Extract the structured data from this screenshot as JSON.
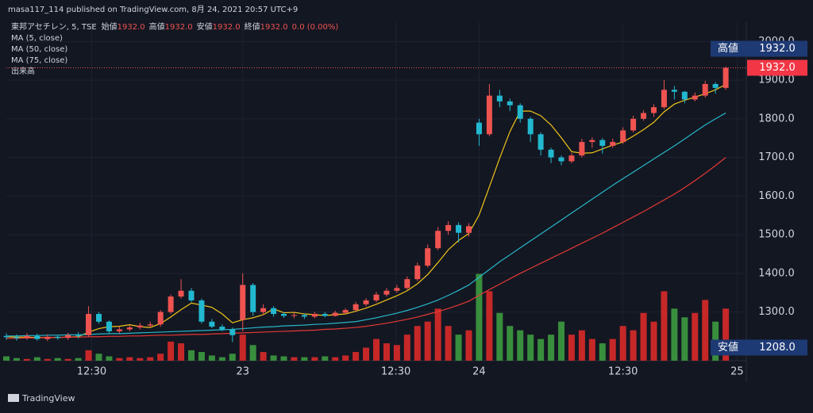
{
  "header": {
    "publisher": "masa117_114 published on TradingView.com, 8月 24, 2021 20:57 UTC+9",
    "brand": "TradingView"
  },
  "chart_data": {
    "type": "candlestick",
    "symbol": "東邦アセチレン, 5, TSE",
    "ohlc": [
      {
        "name": "始値",
        "value": 1932,
        "label": "1932.0"
      },
      {
        "name": "高値",
        "value": 1932,
        "label": "1932.0"
      },
      {
        "name": "安値",
        "value": 1932,
        "label": "1932.0"
      },
      {
        "name": "終値",
        "value": 1932,
        "label": "1932.0"
      }
    ],
    "change": "0.0 (0.00%)",
    "volume_name": "出来高",
    "up_color": "#ef5350",
    "down_color": "#22b8cf",
    "volume_up_color": "#c62828",
    "volume_down_color": "#388e3c",
    "ylim": [
      1174,
      2050
    ],
    "yticks": [
      {
        "value": 1300,
        "label": "1300.0"
      },
      {
        "value": 1400,
        "label": "1400.0"
      },
      {
        "value": 1500,
        "label": "1500.0"
      },
      {
        "value": 1600,
        "label": "1600.0"
      },
      {
        "value": 1700,
        "label": "1700.0"
      },
      {
        "value": 1800,
        "label": "1800.0"
      },
      {
        "value": 1900,
        "label": "1900.0"
      },
      {
        "value": 2000,
        "label": "2000.0"
      }
    ],
    "xlim": [
      0,
      72
    ],
    "xticks": [
      {
        "value": 8.3,
        "label": "12:30"
      },
      {
        "value": 23,
        "label": "23"
      },
      {
        "value": 37.9,
        "label": "12:30"
      },
      {
        "value": 46,
        "label": "24"
      },
      {
        "value": 60,
        "label": "12:30"
      },
      {
        "value": 71.1,
        "label": "25"
      }
    ],
    "grid": true,
    "volume_lim": [
      0,
      390
    ],
    "open": [
      1238,
      1235,
      1232,
      1238,
      1230,
      1236,
      1233,
      1240,
      1240,
      1295,
      1275,
      1250,
      1255,
      1260,
      1265,
      1268,
      1300,
      1340,
      1355,
      1330,
      1275,
      1262,
      1255,
      1280,
      1370,
      1300,
      1310,
      1295,
      1290,
      1292,
      1288,
      1295,
      1290,
      1298,
      1305,
      1320,
      1330,
      1345,
      1355,
      1362,
      1385,
      1420,
      1465,
      1510,
      1525,
      1505,
      1790,
      1760,
      1860,
      1845,
      1835,
      1800,
      1760,
      1720,
      1700,
      1690,
      1705,
      1740,
      1745,
      1730,
      1740,
      1770,
      1800,
      1815,
      1830,
      1875,
      1870,
      1850,
      1860,
      1890,
      1880
    ],
    "high": [
      1245,
      1242,
      1245,
      1244,
      1242,
      1240,
      1246,
      1248,
      1315,
      1300,
      1278,
      1262,
      1266,
      1272,
      1275,
      1305,
      1345,
      1385,
      1362,
      1335,
      1282,
      1268,
      1260,
      1400,
      1375,
      1320,
      1315,
      1300,
      1298,
      1296,
      1300,
      1300,
      1303,
      1310,
      1326,
      1336,
      1352,
      1362,
      1370,
      1392,
      1428,
      1475,
      1520,
      1535,
      1532,
      1530,
      1800,
      1890,
      1875,
      1852,
      1840,
      1805,
      1765,
      1725,
      1705,
      1712,
      1748,
      1752,
      1750,
      1748,
      1778,
      1808,
      1822,
      1838,
      1900,
      1885,
      1872,
      1868,
      1898,
      1895,
      1935
    ],
    "low": [
      1228,
      1226,
      1228,
      1226,
      1225,
      1228,
      1228,
      1232,
      1235,
      1270,
      1245,
      1245,
      1250,
      1255,
      1260,
      1262,
      1295,
      1335,
      1325,
      1270,
      1258,
      1250,
      1222,
      1250,
      1290,
      1292,
      1288,
      1285,
      1284,
      1282,
      1284,
      1286,
      1288,
      1295,
      1302,
      1315,
      1325,
      1340,
      1350,
      1358,
      1380,
      1415,
      1460,
      1500,
      1480,
      1495,
      1730,
      1755,
      1830,
      1820,
      1790,
      1740,
      1705,
      1685,
      1680,
      1685,
      1700,
      1725,
      1710,
      1725,
      1735,
      1765,
      1795,
      1805,
      1825,
      1850,
      1840,
      1845,
      1855,
      1865,
      1875
    ],
    "close": [
      1235,
      1232,
      1238,
      1230,
      1236,
      1233,
      1240,
      1238,
      1295,
      1275,
      1250,
      1255,
      1260,
      1265,
      1268,
      1300,
      1340,
      1355,
      1330,
      1275,
      1262,
      1255,
      1240,
      1370,
      1300,
      1310,
      1295,
      1290,
      1292,
      1288,
      1295,
      1290,
      1298,
      1305,
      1320,
      1330,
      1345,
      1355,
      1362,
      1385,
      1420,
      1465,
      1510,
      1525,
      1505,
      1522,
      1760,
      1860,
      1845,
      1835,
      1800,
      1760,
      1720,
      1700,
      1690,
      1705,
      1740,
      1745,
      1730,
      1740,
      1770,
      1800,
      1815,
      1830,
      1875,
      1870,
      1850,
      1860,
      1890,
      1880,
      1932
    ],
    "volume": [
      5,
      3,
      2,
      4,
      2,
      3,
      2,
      3,
      12,
      8,
      5,
      3,
      4,
      3,
      4,
      8,
      22,
      20,
      12,
      10,
      6,
      4,
      8,
      30,
      18,
      10,
      6,
      5,
      4,
      4,
      4,
      5,
      4,
      6,
      10,
      15,
      25,
      20,
      18,
      30,
      40,
      45,
      60,
      40,
      30,
      35,
      100,
      80,
      55,
      40,
      35,
      30,
      25,
      30,
      45,
      30,
      35,
      25,
      20,
      25,
      40,
      35,
      55,
      45,
      80,
      60,
      50,
      55,
      70,
      45,
      60
    ],
    "series": [
      {
        "name": "MA (5, close)",
        "color": "#f0c419",
        "values": [
          1236,
          1235,
          1235,
          1234,
          1234,
          1234,
          1235,
          1236,
          1248,
          1257,
          1262,
          1263,
          1267,
          1262,
          1260,
          1270,
          1287,
          1306,
          1323,
          1318,
          1312,
          1295,
          1272,
          1280,
          1285,
          1293,
          1308,
          1298,
          1299,
          1295,
          1293,
          1291,
          1293,
          1295,
          1302,
          1310,
          1320,
          1331,
          1342,
          1355,
          1373,
          1397,
          1428,
          1461,
          1485,
          1503,
          1551,
          1624,
          1698,
          1767,
          1820,
          1820,
          1808,
          1784,
          1751,
          1715,
          1711,
          1712,
          1722,
          1732,
          1740,
          1755,
          1772,
          1791,
          1818,
          1838,
          1848,
          1856,
          1865,
          1875,
          1889
        ]
      },
      {
        "name": "MA (50, close)",
        "color": "#26b7c9",
        "values": [
          1238,
          1238,
          1239,
          1239,
          1240,
          1240,
          1241,
          1241,
          1242,
          1243,
          1244,
          1244,
          1245,
          1246,
          1247,
          1248,
          1249,
          1250,
          1251,
          1252,
          1253,
          1254,
          1255,
          1257,
          1259,
          1261,
          1262,
          1264,
          1265,
          1266,
          1268,
          1269,
          1271,
          1273,
          1275,
          1280,
          1285,
          1291,
          1297,
          1304,
          1312,
          1321,
          1331,
          1343,
          1356,
          1370,
          1390,
          1410,
          1430,
          1448,
          1466,
          1484,
          1502,
          1520,
          1538,
          1556,
          1574,
          1592,
          1610,
          1628,
          1645,
          1662,
          1679,
          1696,
          1713,
          1730,
          1748,
          1766,
          1784,
          1800,
          1815
        ]
      },
      {
        "name": "MA (75, close)",
        "color": "#e53935",
        "values": [
          1232,
          1232,
          1233,
          1233,
          1234,
          1234,
          1235,
          1235,
          1236,
          1236,
          1237,
          1237,
          1238,
          1238,
          1239,
          1240,
          1240,
          1241,
          1242,
          1242,
          1243,
          1244,
          1245,
          1246,
          1247,
          1248,
          1249,
          1250,
          1251,
          1252,
          1253,
          1255,
          1256,
          1258,
          1260,
          1263,
          1267,
          1271,
          1276,
          1281,
          1287,
          1294,
          1301,
          1309,
          1318,
          1328,
          1343,
          1358,
          1372,
          1386,
          1400,
          1413,
          1426,
          1439,
          1452,
          1465,
          1478,
          1491,
          1504,
          1518,
          1532,
          1546,
          1560,
          1575,
          1590,
          1605,
          1622,
          1640,
          1659,
          1679,
          1700
        ]
      }
    ],
    "last_price": {
      "value": 1932,
      "label": "1932.0"
    },
    "high_marker": {
      "title": "高値",
      "value": 1932,
      "label": "1932.0"
    },
    "low_marker": {
      "title": "安値",
      "value": 1208,
      "label": "1208.0"
    }
  }
}
